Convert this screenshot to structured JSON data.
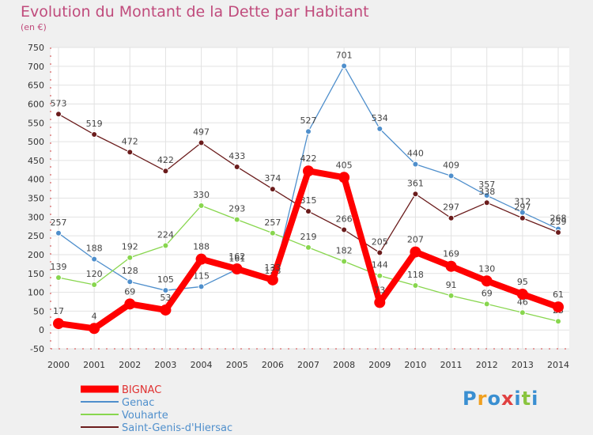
{
  "chart_data": {
    "type": "line",
    "title": "Evolution du Montant de la Dette par Habitant",
    "subtitle": "(en €)",
    "x": [
      "2000",
      "2001",
      "2002",
      "2003",
      "2004",
      "2005",
      "2006",
      "2007",
      "2008",
      "2009",
      "2010",
      "2011",
      "2012",
      "2013",
      "2014"
    ],
    "ylim": [
      -50,
      750
    ],
    "yticks": [
      -50,
      0,
      50,
      100,
      150,
      200,
      250,
      300,
      350,
      400,
      450,
      500,
      550,
      600,
      650,
      700,
      750
    ],
    "grid": true,
    "legend_placement": "bottom-left",
    "series": [
      {
        "name": "BIGNAC",
        "color": "#ff0000",
        "values": [
          17,
          4,
          69,
          53,
          188,
          162,
          133,
          422,
          405,
          73,
          207,
          169,
          130,
          95,
          61
        ]
      },
      {
        "name": "Genac",
        "color": "#4f8fcc",
        "values": [
          257,
          188,
          128,
          105,
          115,
          161,
          128,
          527,
          701,
          534,
          440,
          409,
          357,
          312,
          268
        ]
      },
      {
        "name": "Vouharte",
        "color": "#88d64e",
        "values": [
          139,
          120,
          192,
          224,
          330,
          293,
          257,
          219,
          182,
          144,
          118,
          91,
          69,
          46,
          23
        ]
      },
      {
        "name": "Saint-Genis-d'Hiersac",
        "color": "#6b1c1c",
        "values": [
          573,
          519,
          472,
          422,
          497,
          433,
          374,
          315,
          266,
          205,
          361,
          297,
          338,
          297,
          259
        ]
      }
    ]
  },
  "logo": {
    "letters": [
      "P",
      "r",
      "o",
      "x",
      "i",
      "t",
      "i"
    ],
    "colors": [
      "#3a8fd1",
      "#f0a020",
      "#3a8fd1",
      "#e04040",
      "#3a8fd1",
      "#8ac43f",
      "#3a8fd1"
    ]
  }
}
